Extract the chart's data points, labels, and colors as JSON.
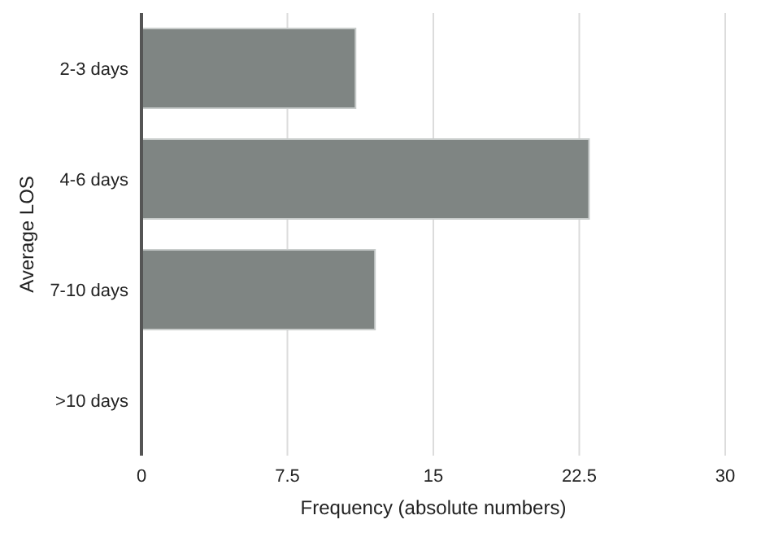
{
  "chart_data": {
    "type": "bar",
    "orientation": "horizontal",
    "categories": [
      "2-3 days",
      "4-6 days",
      "7-10 days",
      ">10 days"
    ],
    "values": [
      11,
      23,
      12,
      0
    ],
    "color": "#7f8583",
    "xlim": [
      0,
      30
    ],
    "xticks": [
      0,
      7.5,
      15,
      22.5,
      30
    ],
    "grid": "x",
    "xlabel": "Frequency (absolute numbers)",
    "ylabel": "Average LOS"
  }
}
